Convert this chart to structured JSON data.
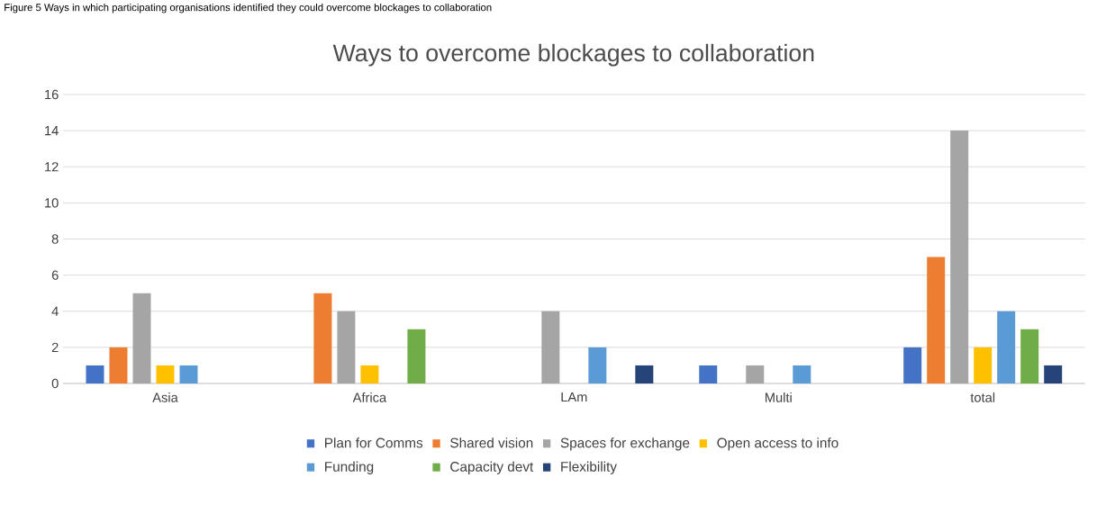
{
  "chart_data": {
    "type": "bar",
    "title": "Ways to overcome blockages to collaboration",
    "annotations": [
      "Figure 5 Ways in which participating organisations identified they could overcome blockages to collaboration"
    ],
    "categories": [
      "Asia",
      "Africa",
      "LAm",
      "Multi",
      "total"
    ],
    "series": [
      {
        "name": "Plan for Comms",
        "color": "#4472c4",
        "values": [
          1,
          0,
          0,
          1,
          2
        ]
      },
      {
        "name": "Shared vision",
        "color": "#ed7d31",
        "values": [
          2,
          5,
          0,
          0,
          7
        ]
      },
      {
        "name": "Spaces for exchange",
        "color": "#a5a5a5",
        "values": [
          5,
          4,
          4,
          1,
          14
        ]
      },
      {
        "name": "Open access to info",
        "color": "#ffc000",
        "values": [
          1,
          1,
          0,
          0,
          2
        ]
      },
      {
        "name": "Funding",
        "color": "#5b9bd5",
        "values": [
          1,
          0,
          2,
          1,
          4
        ]
      },
      {
        "name": "Capacity devt",
        "color": "#70ad47",
        "values": [
          0,
          3,
          0,
          0,
          3
        ]
      },
      {
        "name": "Flexibility",
        "color": "#264478",
        "values": [
          0,
          0,
          1,
          0,
          1
        ]
      }
    ],
    "ylim": [
      0,
      16
    ],
    "yticks": [
      0,
      2,
      4,
      6,
      8,
      10,
      12,
      14,
      16
    ],
    "grid": "y",
    "legend": "bottom"
  }
}
